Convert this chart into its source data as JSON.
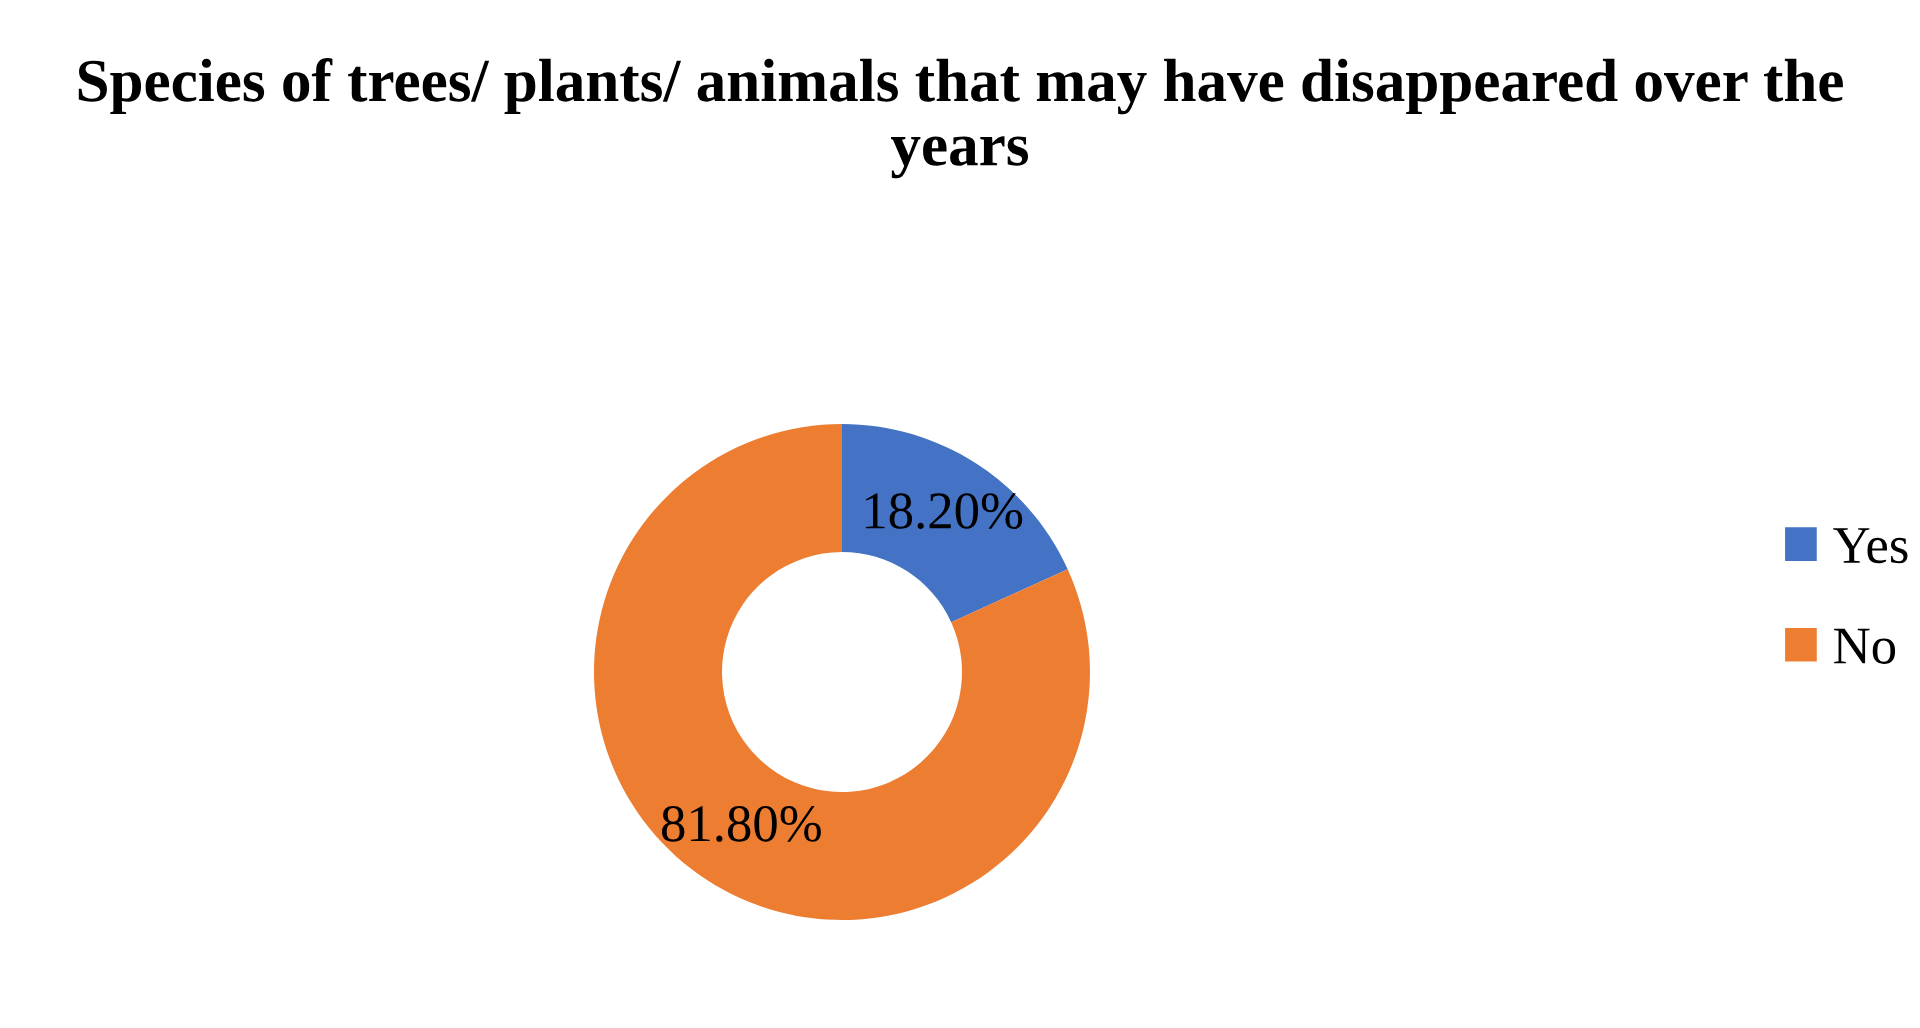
{
  "chart_data": {
    "type": "donut",
    "title": "Species of trees/ plants/ animals that may have disappeared over the years",
    "categories": [
      "Yes",
      "No"
    ],
    "values": [
      18.2,
      81.8
    ],
    "colors": [
      "#4472c4",
      "#ed7d31"
    ],
    "value_labels": [
      "18.20%",
      "81.80%"
    ],
    "legend": "right"
  }
}
